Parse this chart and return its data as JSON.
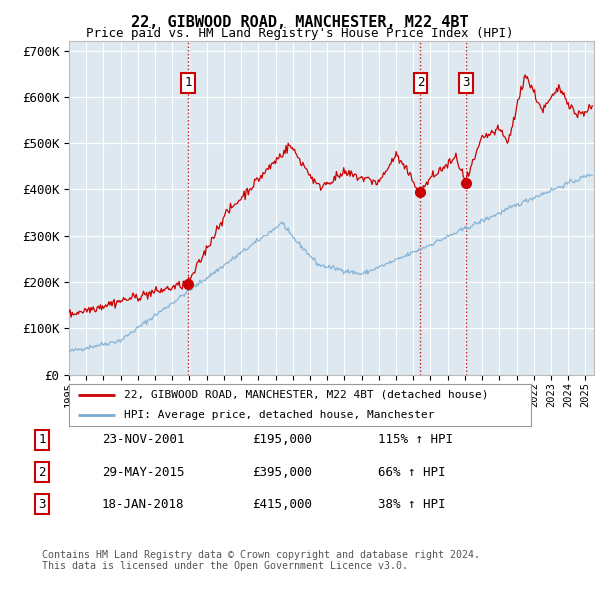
{
  "title1": "22, GIBWOOD ROAD, MANCHESTER, M22 4BT",
  "title2": "Price paid vs. HM Land Registry's House Price Index (HPI)",
  "ylim": [
    0,
    720000
  ],
  "yticks": [
    0,
    100000,
    200000,
    300000,
    400000,
    500000,
    600000,
    700000
  ],
  "ytick_labels": [
    "£0",
    "£100K",
    "£200K",
    "£300K",
    "£400K",
    "£500K",
    "£600K",
    "£700K"
  ],
  "xlim_start": 1995.0,
  "xlim_end": 2025.5,
  "background_color": "#dde8f0",
  "red_line_color": "#cc0000",
  "blue_line_color": "#7aaad0",
  "sale_points": [
    {
      "date_num": 2001.9,
      "price": 195000,
      "label": "1"
    },
    {
      "date_num": 2015.42,
      "price": 395000,
      "label": "2"
    },
    {
      "date_num": 2018.05,
      "price": 415000,
      "label": "3"
    }
  ],
  "vline_color": "#cc0000",
  "legend_red_label": "22, GIBWOOD ROAD, MANCHESTER, M22 4BT (detached house)",
  "legend_blue_label": "HPI: Average price, detached house, Manchester",
  "table_data": [
    [
      "1",
      "23-NOV-2001",
      "£195,000",
      "115% ↑ HPI"
    ],
    [
      "2",
      "29-MAY-2015",
      "£395,000",
      "66% ↑ HPI"
    ],
    [
      "3",
      "18-JAN-2018",
      "£415,000",
      "38% ↑ HPI"
    ]
  ],
  "footnote": "Contains HM Land Registry data © Crown copyright and database right 2024.\nThis data is licensed under the Open Government Licence v3.0."
}
